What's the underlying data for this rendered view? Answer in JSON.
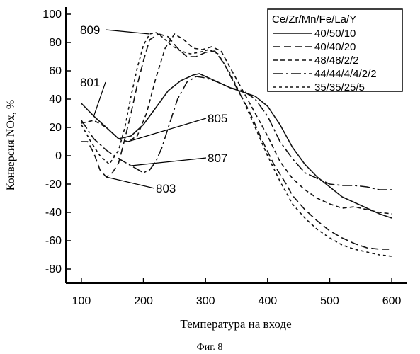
{
  "figure_caption": "Фиг. 8",
  "chart_data": {
    "type": "line",
    "xlabel": "Температура на входе",
    "ylabel": "Конверсия NOx, %",
    "xlim": [
      75,
      625
    ],
    "ylim": [
      -90,
      105
    ],
    "xticks": [
      100,
      200,
      300,
      400,
      500,
      600
    ],
    "yticks": [
      100,
      80,
      60,
      40,
      20,
      0,
      -20,
      -40,
      -60,
      -80
    ],
    "grid": false,
    "legend_placement": "top-right",
    "legend_title": "Ce/Zr/Mn/Fe/La/Y",
    "series": [
      {
        "name": "40/50/10",
        "callout": "801",
        "dash": "",
        "points": [
          [
            100,
            37
          ],
          [
            120,
            28
          ],
          [
            140,
            20
          ],
          [
            160,
            12
          ],
          [
            180,
            14
          ],
          [
            200,
            22
          ],
          [
            220,
            34
          ],
          [
            240,
            46
          ],
          [
            260,
            53
          ],
          [
            280,
            57
          ],
          [
            290,
            58
          ],
          [
            300,
            56
          ],
          [
            320,
            52
          ],
          [
            340,
            48
          ],
          [
            360,
            45
          ],
          [
            380,
            42
          ],
          [
            400,
            35
          ],
          [
            420,
            22
          ],
          [
            440,
            6
          ],
          [
            460,
            -6
          ],
          [
            480,
            -15
          ],
          [
            500,
            -22
          ],
          [
            520,
            -29
          ],
          [
            540,
            -33
          ],
          [
            560,
            -37
          ],
          [
            580,
            -41
          ],
          [
            600,
            -44
          ]
        ]
      },
      {
        "name": "40/40/20",
        "callout": "803",
        "dash": "10,5",
        "points": [
          [
            100,
            10
          ],
          [
            110,
            10
          ],
          [
            120,
            2
          ],
          [
            130,
            -10
          ],
          [
            140,
            -15
          ],
          [
            150,
            -12
          ],
          [
            160,
            -5
          ],
          [
            170,
            12
          ],
          [
            180,
            30
          ],
          [
            190,
            50
          ],
          [
            200,
            67
          ],
          [
            210,
            82
          ],
          [
            225,
            86
          ],
          [
            240,
            84
          ],
          [
            255,
            76
          ],
          [
            270,
            70
          ],
          [
            285,
            70
          ],
          [
            300,
            73
          ],
          [
            315,
            74
          ],
          [
            330,
            65
          ],
          [
            350,
            48
          ],
          [
            370,
            32
          ],
          [
            390,
            12
          ],
          [
            410,
            -6
          ],
          [
            430,
            -20
          ],
          [
            440,
            -28
          ],
          [
            460,
            -38
          ],
          [
            480,
            -46
          ],
          [
            500,
            -53
          ],
          [
            520,
            -58
          ],
          [
            540,
            -62
          ],
          [
            560,
            -65
          ],
          [
            580,
            -66
          ],
          [
            600,
            -66
          ]
        ]
      },
      {
        "name": "48/48/2/2",
        "callout": "805",
        "dash": "6,4",
        "points": [
          [
            100,
            23
          ],
          [
            120,
            25
          ],
          [
            140,
            20
          ],
          [
            160,
            12
          ],
          [
            175,
            10
          ],
          [
            190,
            14
          ],
          [
            205,
            30
          ],
          [
            220,
            55
          ],
          [
            235,
            76
          ],
          [
            250,
            86
          ],
          [
            265,
            82
          ],
          [
            280,
            76
          ],
          [
            295,
            75
          ],
          [
            310,
            77
          ],
          [
            325,
            74
          ],
          [
            340,
            62
          ],
          [
            360,
            46
          ],
          [
            380,
            30
          ],
          [
            400,
            14
          ],
          [
            420,
            -4
          ],
          [
            440,
            -16
          ],
          [
            460,
            -24
          ],
          [
            480,
            -30
          ],
          [
            500,
            -34
          ],
          [
            520,
            -37
          ],
          [
            540,
            -36
          ],
          [
            560,
            -38
          ],
          [
            580,
            -40
          ],
          [
            600,
            -41
          ]
        ]
      },
      {
        "name": "44/44/4/4/2/2",
        "callout": "807",
        "dash": "14,4,3,4",
        "points": [
          [
            100,
            25
          ],
          [
            120,
            12
          ],
          [
            140,
            4
          ],
          [
            160,
            -2
          ],
          [
            180,
            -7
          ],
          [
            200,
            -12
          ],
          [
            210,
            -10
          ],
          [
            220,
            -4
          ],
          [
            230,
            6
          ],
          [
            240,
            20
          ],
          [
            255,
            40
          ],
          [
            270,
            52
          ],
          [
            285,
            56
          ],
          [
            300,
            55
          ],
          [
            320,
            52
          ],
          [
            340,
            48
          ],
          [
            360,
            46
          ],
          [
            380,
            40
          ],
          [
            400,
            28
          ],
          [
            420,
            10
          ],
          [
            440,
            -2
          ],
          [
            460,
            -12
          ],
          [
            480,
            -16
          ],
          [
            500,
            -20
          ],
          [
            520,
            -21
          ],
          [
            540,
            -21
          ],
          [
            560,
            -22
          ],
          [
            580,
            -24
          ],
          [
            600,
            -24
          ]
        ]
      },
      {
        "name": "35/35/25/5",
        "callout": "809",
        "dash": "4,4",
        "points": [
          [
            100,
            22
          ],
          [
            115,
            10
          ],
          [
            130,
            0
          ],
          [
            145,
            -6
          ],
          [
            160,
            4
          ],
          [
            170,
            20
          ],
          [
            180,
            42
          ],
          [
            190,
            62
          ],
          [
            200,
            78
          ],
          [
            210,
            86
          ],
          [
            220,
            87
          ],
          [
            230,
            84
          ],
          [
            245,
            78
          ],
          [
            260,
            74
          ],
          [
            275,
            72
          ],
          [
            290,
            73
          ],
          [
            305,
            75
          ],
          [
            320,
            72
          ],
          [
            340,
            58
          ],
          [
            360,
            40
          ],
          [
            380,
            20
          ],
          [
            400,
            0
          ],
          [
            420,
            -18
          ],
          [
            440,
            -34
          ],
          [
            460,
            -44
          ],
          [
            480,
            -52
          ],
          [
            500,
            -58
          ],
          [
            520,
            -63
          ],
          [
            540,
            -66
          ],
          [
            560,
            -68
          ],
          [
            580,
            -70
          ],
          [
            600,
            -71
          ]
        ]
      }
    ]
  }
}
